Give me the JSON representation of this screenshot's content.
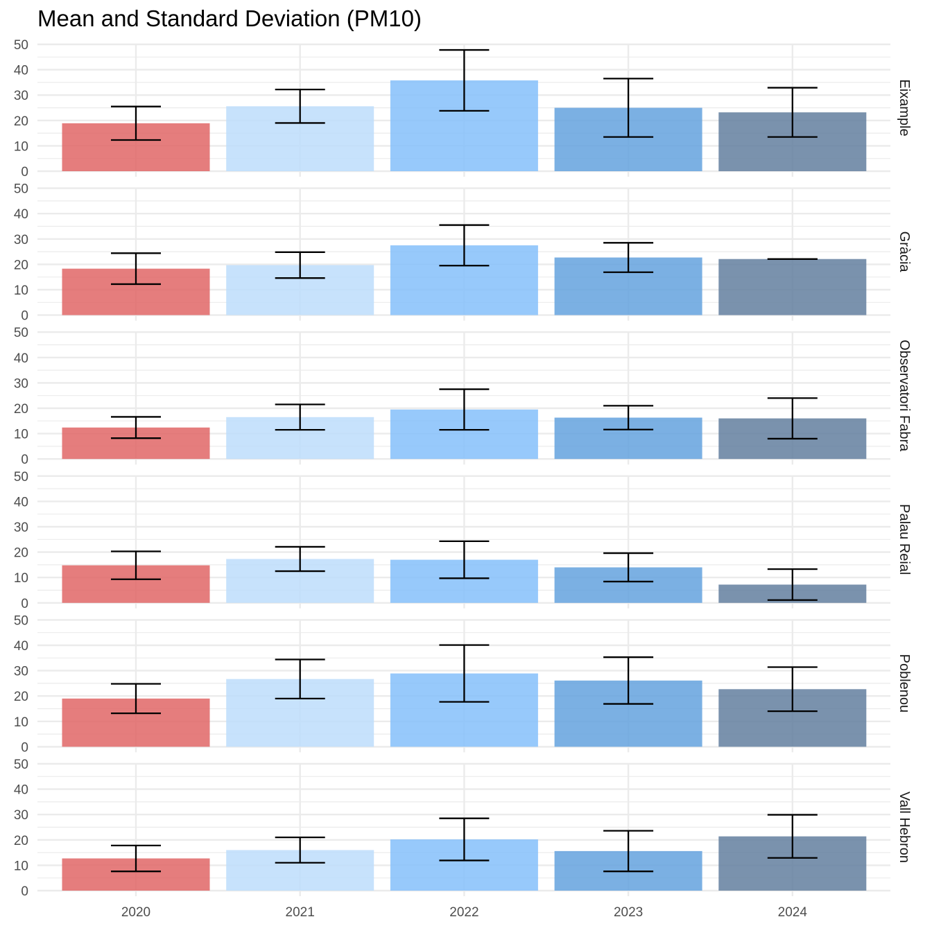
{
  "chart_data": {
    "type": "bar",
    "title": "Mean and Standard Deviation (PM10)",
    "xlabel": "",
    "ylabel": "",
    "categories": [
      "2020",
      "2021",
      "2022",
      "2023",
      "2024"
    ],
    "ylim": [
      0,
      50
    ],
    "yticks": [
      "0",
      "10",
      "20",
      "30",
      "40",
      "50"
    ],
    "grid": true,
    "legend": "none",
    "colors": {
      "2020": "#E06666",
      "2021": "#BDDDFB",
      "2022": "#85BFFA",
      "2023": "#64A2DE",
      "2024": "#637F9F",
      "errorbar": "#000000",
      "grid": "#EBEBEB",
      "axis_text": "#4D4D4D"
    },
    "panels": [
      {
        "name": "Eixample",
        "mean": [
          18.9,
          25.6,
          35.8,
          25.0,
          23.2
        ],
        "sd": [
          6.6,
          6.6,
          12.0,
          11.5,
          9.7
        ]
      },
      {
        "name": "Gràcia",
        "mean": [
          18.3,
          19.7,
          27.5,
          22.7,
          22.1
        ],
        "sd": [
          6.1,
          5.1,
          8.0,
          5.8,
          0.0
        ]
      },
      {
        "name": "Observatori Fabra",
        "mean": [
          12.4,
          16.5,
          19.5,
          16.3,
          16.0
        ],
        "sd": [
          4.2,
          5.0,
          8.0,
          4.7,
          8.0
        ]
      },
      {
        "name": "Palau Reial",
        "mean": [
          14.8,
          17.3,
          17.0,
          14.0,
          7.2
        ],
        "sd": [
          5.5,
          4.8,
          7.3,
          5.6,
          6.1
        ]
      },
      {
        "name": "Poblenou",
        "mean": [
          19.0,
          26.7,
          28.9,
          26.1,
          22.7
        ],
        "sd": [
          5.8,
          7.7,
          11.2,
          9.2,
          8.7
        ]
      },
      {
        "name": "Vall Hebron",
        "mean": [
          12.7,
          16.0,
          20.2,
          15.6,
          21.4
        ],
        "sd": [
          5.1,
          5.0,
          8.3,
          8.0,
          8.5
        ]
      }
    ]
  }
}
